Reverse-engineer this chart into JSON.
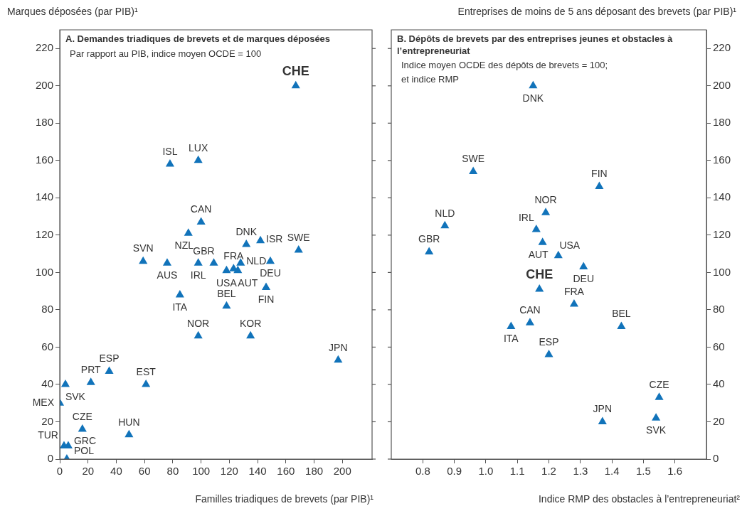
{
  "chart_data": [
    {
      "type": "scatter",
      "title": "A. Demandes triadiques de brevets et de marques déposées",
      "subtitle": "Par rapport au PIB, indice moyen OCDE = 100",
      "xlabel": "Familles triadiques de brevets (par PIB)¹",
      "ylabel": "Marques déposées (par PIB)¹",
      "marker": "triangle",
      "legend": false,
      "xlim": [
        0,
        221
      ],
      "xticks": [
        0,
        20,
        40,
        60,
        80,
        100,
        120,
        140,
        160,
        180,
        200
      ],
      "ylim": [
        0,
        230
      ],
      "yticks": [
        0,
        20,
        40,
        60,
        80,
        100,
        120,
        140,
        160,
        180,
        200,
        220
      ],
      "series": [
        {
          "color": "#1173ba",
          "x": [
            167,
            78,
            98,
            100,
            91,
            132,
            142,
            169,
            59,
            76,
            98,
            109,
            118,
            123,
            126,
            128,
            149,
            146,
            85,
            118,
            98,
            135,
            197,
            35,
            22,
            4,
            61,
            0,
            16,
            49,
            3,
            6,
            5
          ],
          "values": [
            200,
            158,
            160,
            127,
            121,
            115,
            117,
            112,
            106,
            105,
            105,
            105,
            101,
            102,
            101,
            105,
            106,
            92,
            88,
            82,
            66,
            66,
            53,
            47,
            41,
            40,
            40,
            30,
            16,
            13,
            7,
            7,
            0
          ]
        }
      ],
      "annotations": [
        {
          "text": "CHE",
          "x": 167,
          "y": 200
        },
        {
          "text": "ISL",
          "x": 78,
          "y": 158
        },
        {
          "text": "LUX",
          "x": 98,
          "y": 160
        },
        {
          "text": "CAN",
          "x": 100,
          "y": 127
        },
        {
          "text": "NZL",
          "x": 91,
          "y": 121
        },
        {
          "text": "DNK",
          "x": 132,
          "y": 115
        },
        {
          "text": "ISR",
          "x": 142,
          "y": 117
        },
        {
          "text": "SWE",
          "x": 169,
          "y": 112
        },
        {
          "text": "SVN",
          "x": 59,
          "y": 106
        },
        {
          "text": "AUS",
          "x": 76,
          "y": 105
        },
        {
          "text": "IRL",
          "x": 98,
          "y": 105
        },
        {
          "text": "GBR",
          "x": 109,
          "y": 105
        },
        {
          "text": "USA",
          "x": 118,
          "y": 101
        },
        {
          "text": "FRA",
          "x": 123,
          "y": 102
        },
        {
          "text": "AUT",
          "x": 126,
          "y": 101
        },
        {
          "text": "NLD",
          "x": 128,
          "y": 105
        },
        {
          "text": "DEU",
          "x": 149,
          "y": 106
        },
        {
          "text": "FIN",
          "x": 146,
          "y": 92
        },
        {
          "text": "ITA",
          "x": 85,
          "y": 88
        },
        {
          "text": "BEL",
          "x": 118,
          "y": 82
        },
        {
          "text": "NOR",
          "x": 98,
          "y": 66
        },
        {
          "text": "KOR",
          "x": 135,
          "y": 66
        },
        {
          "text": "JPN",
          "x": 197,
          "y": 53
        },
        {
          "text": "ESP",
          "x": 35,
          "y": 47
        },
        {
          "text": "PRT",
          "x": 22,
          "y": 41
        },
        {
          "text": "SVK",
          "x": 4,
          "y": 40
        },
        {
          "text": "EST",
          "x": 61,
          "y": 40
        },
        {
          "text": "MEX",
          "x": 0,
          "y": 30
        },
        {
          "text": "CZE",
          "x": 16,
          "y": 16
        },
        {
          "text": "HUN",
          "x": 49,
          "y": 13
        },
        {
          "text": "TUR",
          "x": 3,
          "y": 7
        },
        {
          "text": "GRC",
          "x": 6,
          "y": 7
        },
        {
          "text": "POL",
          "x": 5,
          "y": 0
        }
      ]
    },
    {
      "type": "scatter",
      "title": "B. Dépôts de brevets par des entreprises jeunes et obstacles à l’entrepreneuriat",
      "subtitle": "Indice moyen OCDE des dépôts de brevets = 100; et indice RMP",
      "xlabel": "Indice RMP des obstacles à l’entrepreneuriat²",
      "ylabel": "Entreprises de moins de 5 ans déposant des brevets (par PIB)¹",
      "marker": "triangle",
      "legend": false,
      "xlim": [
        0.7,
        1.7
      ],
      "xticks": [
        0.8,
        0.9,
        {
          "value": 1,
          "label": "1.0"
        },
        1.1,
        1.2,
        1.3,
        1.4,
        1.5,
        1.6
      ],
      "ylim": [
        0,
        230
      ],
      "yticks": [
        0,
        20,
        40,
        60,
        80,
        100,
        120,
        140,
        160,
        180,
        200,
        220
      ],
      "series": [
        {
          "color": "#1173ba",
          "x": [
            1.15,
            0.96,
            1.36,
            1.19,
            0.87,
            1.16,
            0.82,
            1.18,
            1.23,
            1.31,
            1.17,
            1.28,
            1.14,
            1.08,
            1.43,
            1.2,
            1.55,
            1.54,
            1.37
          ],
          "values": [
            200,
            154,
            146,
            132,
            125,
            123,
            111,
            116,
            109,
            103,
            91,
            83,
            73,
            71,
            71,
            56,
            33,
            22,
            20
          ]
        }
      ],
      "annotations": [
        {
          "text": "DNK",
          "x": 1.15,
          "y": 200
        },
        {
          "text": "SWE",
          "x": 0.96,
          "y": 154
        },
        {
          "text": "FIN",
          "x": 1.36,
          "y": 146
        },
        {
          "text": "NOR",
          "x": 1.19,
          "y": 132
        },
        {
          "text": "NLD",
          "x": 0.87,
          "y": 125
        },
        {
          "text": "IRL",
          "x": 1.16,
          "y": 123
        },
        {
          "text": "GBR",
          "x": 0.82,
          "y": 111
        },
        {
          "text": "AUT",
          "x": 1.18,
          "y": 116
        },
        {
          "text": "USA",
          "x": 1.23,
          "y": 109
        },
        {
          "text": "DEU",
          "x": 1.31,
          "y": 103
        },
        {
          "text": "CHE",
          "x": 1.17,
          "y": 91
        },
        {
          "text": "FRA",
          "x": 1.28,
          "y": 83
        },
        {
          "text": "CAN",
          "x": 1.14,
          "y": 73
        },
        {
          "text": "ITA",
          "x": 1.08,
          "y": 71
        },
        {
          "text": "BEL",
          "x": 1.43,
          "y": 71
        },
        {
          "text": "ESP",
          "x": 1.2,
          "y": 56
        },
        {
          "text": "CZE",
          "x": 1.55,
          "y": 33
        },
        {
          "text": "SVK",
          "x": 1.54,
          "y": 22
        },
        {
          "text": "JPN",
          "x": 1.37,
          "y": 20
        }
      ]
    }
  ]
}
